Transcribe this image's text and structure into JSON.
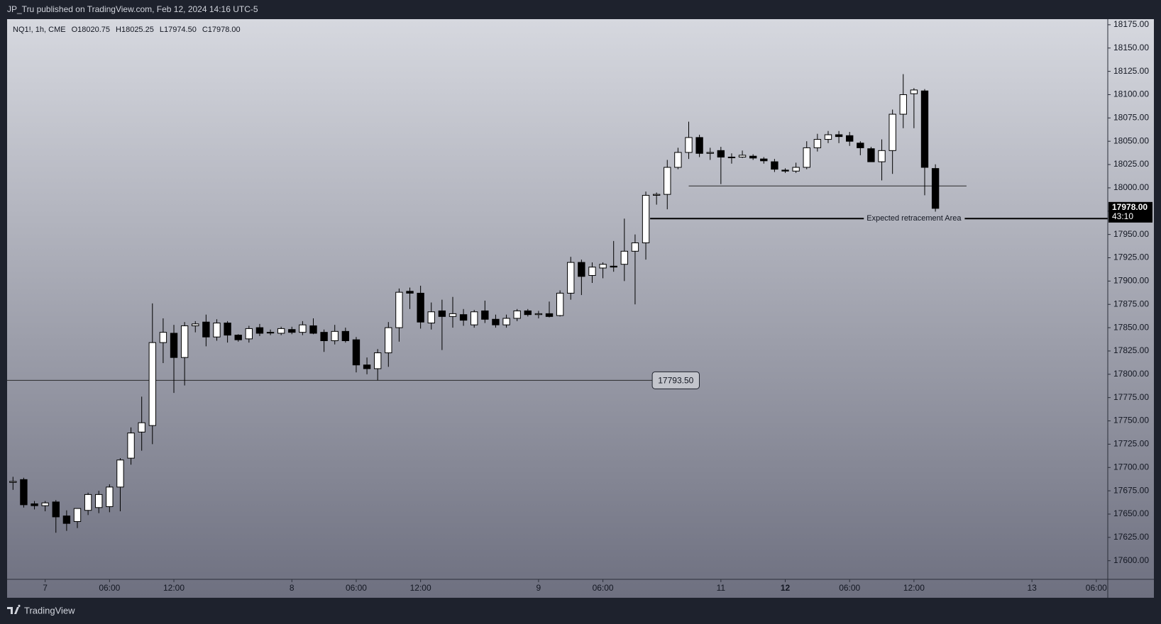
{
  "header": {
    "text": "JP_Tru published on TradingView.com, Feb 12, 2024 14:16 UTC-5"
  },
  "footer": {
    "brand": "TradingView"
  },
  "chart_data": {
    "type": "candlestick",
    "legend": {
      "symbol": "NQ1!, 1h, CME",
      "ohlc": [
        "O18020.75",
        "H18025.25",
        "L17974.50",
        "C17978.00"
      ]
    },
    "up_color": "#ffffff",
    "down_color": "#000000",
    "wick_color": "#000000",
    "open": [
      17684,
      17687,
      17661,
      17659,
      17663,
      17648,
      17642,
      17654,
      17657,
      17658,
      17679,
      17710,
      17738,
      17745,
      17834,
      17844,
      17818,
      17852,
      17856,
      17840,
      17855,
      17842,
      17838,
      17850,
      17845,
      17844,
      17848,
      17845,
      17852,
      17845,
      17836,
      17846,
      17837,
      17810,
      17806,
      17823,
      17850,
      17889,
      17887,
      17855,
      17868,
      17862,
      17864,
      17853,
      17868,
      17859,
      17853,
      17860,
      17868,
      17864,
      17865,
      17863,
      17887,
      17920,
      17906,
      17914,
      17916,
      17918,
      17932,
      17941,
      17992,
      17993,
      18022,
      18038,
      18054,
      18037,
      18040,
      18033,
      18033,
      18034,
      18031,
      18028,
      18019,
      18018,
      18022,
      18043,
      18052,
      18057,
      18056,
      18048,
      18042,
      18028,
      18040,
      18079,
      18101,
      18104,
      18020.75
    ],
    "high": [
      17690,
      17689,
      17664,
      17664,
      17665,
      17654,
      17656,
      17673,
      17675,
      17682,
      17710,
      17743,
      17776,
      17876,
      17860,
      17853,
      17856,
      17857,
      17864,
      17859,
      17857,
      17843,
      17852,
      17854,
      17848,
      17851,
      17851,
      17857,
      17860,
      17848,
      17853,
      17850,
      17840,
      17818,
      17827,
      17856,
      17892,
      17893,
      17895,
      17877,
      17880,
      17883,
      17870,
      17869,
      17879,
      17864,
      17864,
      17870,
      17870,
      17868,
      17878,
      17890,
      17926,
      17923,
      17920,
      17920,
      17943,
      17967,
      17950,
      17996,
      17995,
      18030,
      18043,
      18071,
      18057,
      18043,
      18044,
      18037,
      18040,
      18036,
      18033,
      18031,
      18021,
      18027,
      18050,
      18058,
      18061,
      18061,
      18060,
      18050,
      18044,
      18052,
      18084,
      18122,
      18107,
      18106,
      18025.25
    ],
    "low": [
      17676,
      17657,
      17655,
      17653,
      17630,
      17632,
      17635,
      17649,
      17651,
      17652,
      17653,
      17703,
      17718,
      17725,
      17812,
      17780,
      17788,
      17845,
      17830,
      17836,
      17834,
      17835,
      17834,
      17841,
      17842,
      17842,
      17843,
      17842,
      17843,
      17824,
      17832,
      17834,
      17802,
      17800,
      17793.5,
      17808,
      17835,
      17870,
      17849,
      17848,
      17826,
      17850,
      17852,
      17850,
      17855,
      17850,
      17850,
      17857,
      17862,
      17860,
      17861,
      17862,
      17880,
      17885,
      17898,
      17903,
      17910,
      17900,
      17875,
      17923,
      17982,
      17977,
      18020,
      18031,
      18033,
      18030,
      18004,
      18026,
      18032,
      18030,
      18026,
      18017,
      18016,
      18016,
      18020,
      18039,
      18048,
      18048,
      18045,
      18035,
      18028,
      18008,
      18015,
      18064,
      18064,
      17992,
      17974.5
    ],
    "close": [
      17685,
      17660,
      17659,
      17662,
      17647,
      17640,
      17656,
      17671,
      17671,
      17679,
      17708,
      17737,
      17748,
      17834,
      17845,
      17818,
      17852,
      17854,
      17840,
      17855,
      17842,
      17837,
      17849,
      17844,
      17845,
      17849,
      17845,
      17853,
      17844,
      17836,
      17846,
      17836,
      17810,
      17806,
      17823,
      17850,
      17888,
      17887,
      17856,
      17867,
      17862,
      17865,
      17858,
      17867,
      17859,
      17853,
      17860,
      17868,
      17864,
      17865,
      17862,
      17887,
      17920,
      17905,
      17915,
      17918,
      17915,
      17932,
      17941,
      17992,
      17993,
      18022,
      18038,
      18054,
      18037,
      18038,
      18033,
      18033,
      18035,
      18032,
      18029,
      18020,
      18018,
      18022,
      18043,
      18052,
      18057,
      18055,
      18050,
      18043,
      18028,
      18040,
      18079,
      18100,
      18105,
      18022,
      17978
    ],
    "xlim": [
      -0.55,
      102.07
    ],
    "xticks": [
      {
        "value": 3,
        "label": "7"
      },
      {
        "value": 9,
        "label": "06:00"
      },
      {
        "value": 15,
        "label": "12:00"
      },
      {
        "value": 26,
        "label": "8"
      },
      {
        "value": 32,
        "label": "06:00"
      },
      {
        "value": 38,
        "label": "12:00"
      },
      {
        "value": 49,
        "label": "9"
      },
      {
        "value": 55,
        "label": "06:00"
      },
      {
        "value": 66,
        "label": "11"
      },
      {
        "value": 72,
        "label": "12",
        "bold": true
      },
      {
        "value": 78,
        "label": "06:00"
      },
      {
        "value": 84,
        "label": "12:00"
      },
      {
        "value": 95,
        "label": "13"
      },
      {
        "value": 101,
        "label": "06:00"
      }
    ],
    "ylim": [
      17580,
      18181
    ],
    "yticks": [
      {
        "value": 17600,
        "label": "17600.00"
      },
      {
        "value": 17625,
        "label": "17625.00"
      },
      {
        "value": 17650,
        "label": "17650.00"
      },
      {
        "value": 17675,
        "label": "17675.00"
      },
      {
        "value": 17700,
        "label": "17700.00"
      },
      {
        "value": 17725,
        "label": "17725.00"
      },
      {
        "value": 17750,
        "label": "17750.00"
      },
      {
        "value": 17775,
        "label": "17775.00"
      },
      {
        "value": 17800,
        "label": "17800.00"
      },
      {
        "value": 17825,
        "label": "17825.00"
      },
      {
        "value": 17850,
        "label": "17850.00"
      },
      {
        "value": 17875,
        "label": "17875.00"
      },
      {
        "value": 17900,
        "label": "17900.00"
      },
      {
        "value": 17925,
        "label": "17925.00"
      },
      {
        "value": 17950,
        "label": "17950.00"
      },
      {
        "value": 17975,
        "label": "17975.00"
      },
      {
        "value": 18000,
        "label": "18000.00"
      },
      {
        "value": 18025,
        "label": "18025.00"
      },
      {
        "value": 18050,
        "label": "18050.00"
      },
      {
        "value": 18075,
        "label": "18075.00"
      },
      {
        "value": 18100,
        "label": "18100.00"
      },
      {
        "value": 18125,
        "label": "18125.00"
      },
      {
        "value": 18150,
        "label": "18150.00"
      },
      {
        "value": 18175,
        "label": "18175.00"
      }
    ],
    "hlines": [
      {
        "value": 17793.5,
        "label": "17793.50",
        "x": [
          -0.55,
          59.6
        ],
        "style": "box"
      },
      {
        "value": 18002,
        "x": [
          63,
          88.9
        ]
      },
      {
        "value": 17967,
        "label": "Expected retracement Area",
        "x": [
          59.4,
          102.07
        ],
        "style": "inline",
        "label_x": 84
      }
    ],
    "last_price": {
      "value": 17978,
      "label": "17978.00",
      "countdown": "43:10"
    }
  }
}
